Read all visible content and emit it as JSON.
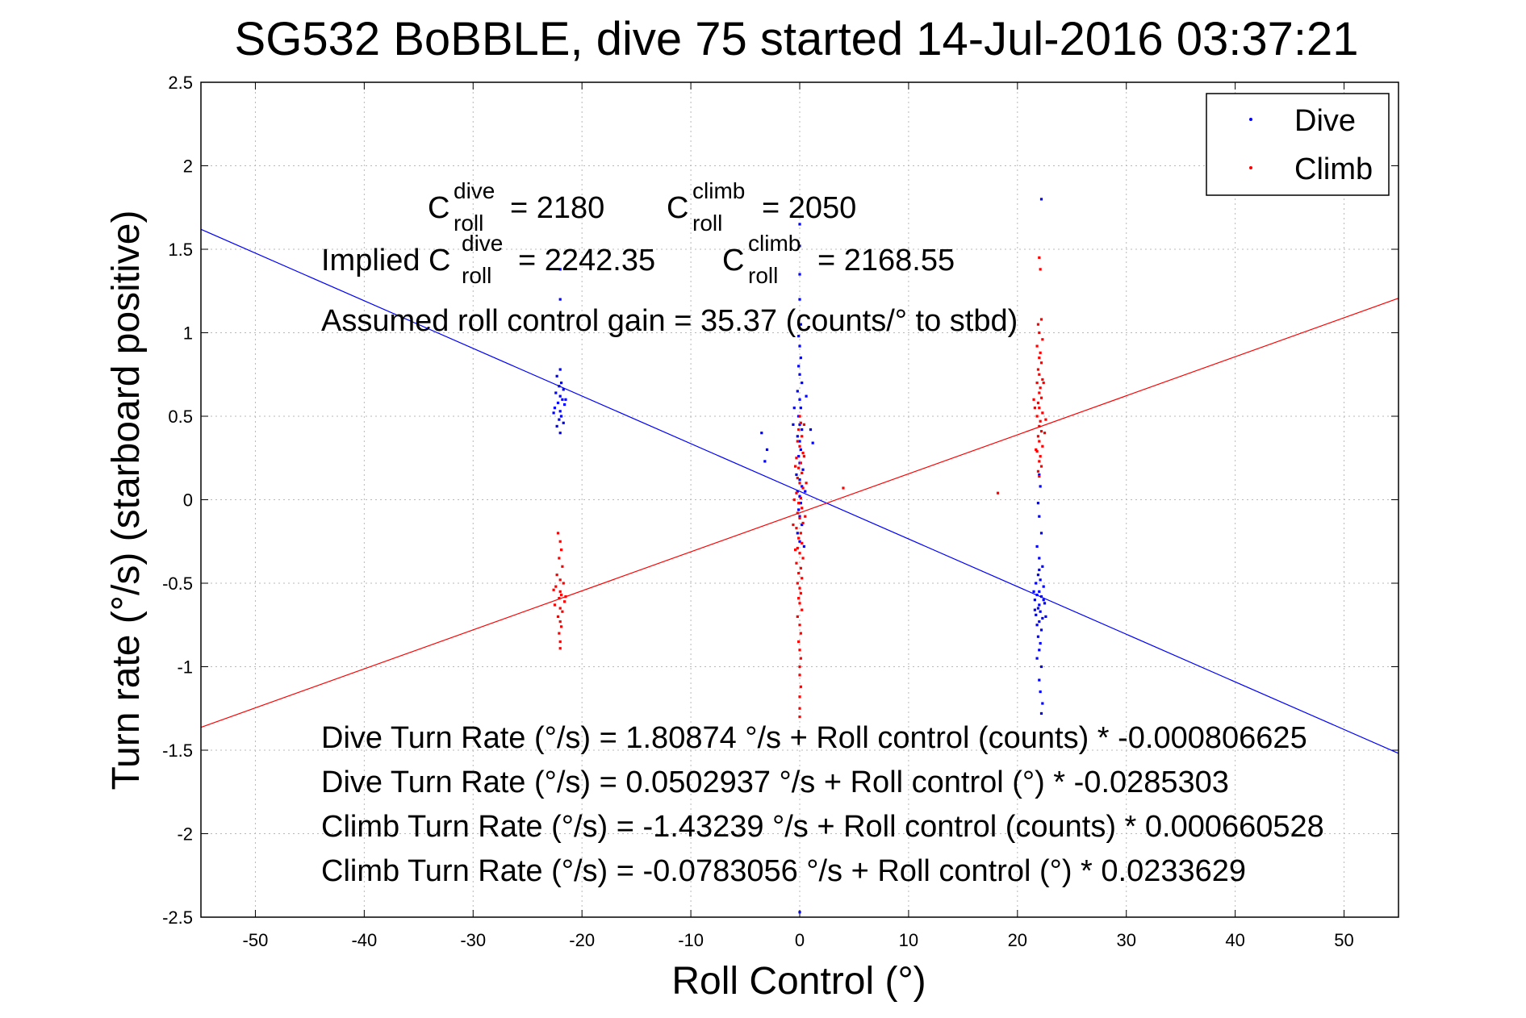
{
  "colors": {
    "dive": "#0000ff",
    "climb": "#ff0000",
    "axis": "#000000",
    "background": "#ffffff"
  },
  "annotations": {
    "c_roll_dive_label": "C",
    "c_roll_dive_sup": "dive",
    "c_roll_dive_sub": "roll",
    "c_roll_dive_value": "= 2180",
    "c_roll_climb_label": "C",
    "c_roll_climb_sup": "climb",
    "c_roll_climb_sub": "roll",
    "c_roll_climb_value": "= 2050",
    "implied_prefix": "Implied C",
    "implied_dive_sup": "dive",
    "implied_dive_sub": "roll",
    "implied_dive_value": "= 2242.35",
    "implied_climb_label": "C",
    "implied_climb_sup": "climb",
    "implied_climb_sub": "roll",
    "implied_climb_value": "= 2168.55",
    "gain": "Assumed roll control gain = 35.37 (counts/° to stbd)",
    "eq1": "Dive Turn Rate (°/s) = 1.80874 °/s + Roll control (counts) * -0.000806625",
    "eq2": "Dive Turn Rate (°/s) = 0.0502937 °/s + Roll control (°) * -0.0285303",
    "eq3": "Climb Turn Rate (°/s) = -1.43239 °/s + Roll control (counts) * 0.000660528",
    "eq4": "Climb Turn Rate (°/s) = -0.0783056 °/s + Roll control (°) * 0.0233629"
  },
  "chart_data": {
    "type": "scatter",
    "title": "SG532 BoBBLE, dive 75 started 14-Jul-2016 03:37:21",
    "xlabel": "Roll Control (°)",
    "ylabel": "Turn rate (°/s) (starboard positive)",
    "xlim": [
      -55,
      55
    ],
    "ylim": [
      -2.5,
      2.5
    ],
    "xticks": [
      -50,
      -40,
      -30,
      -20,
      -10,
      0,
      10,
      20,
      30,
      40,
      50
    ],
    "yticks": [
      -2.5,
      -2,
      -1.5,
      -1,
      -0.5,
      0,
      0.5,
      1,
      1.5,
      2,
      2.5
    ],
    "xtick_labels": [
      "-50",
      "-40",
      "-30",
      "-20",
      "-10",
      "0",
      "10",
      "20",
      "30",
      "40",
      "50"
    ],
    "ytick_labels": [
      "-2.5",
      "-2",
      "-1.5",
      "-1",
      "-0.5",
      "0",
      "0.5",
      "1",
      "1.5",
      "2",
      "2.5"
    ],
    "grid": true,
    "legend_position": "top-right",
    "series": [
      {
        "name": "Dive",
        "color": "#0000ff",
        "marker": "dot",
        "points": [
          [
            -22.0,
            0.78
          ],
          [
            -22.3,
            0.74
          ],
          [
            -21.9,
            0.7
          ],
          [
            -22.1,
            0.68
          ],
          [
            -21.7,
            0.66
          ],
          [
            -22.4,
            0.64
          ],
          [
            -22.0,
            0.62
          ],
          [
            -21.8,
            0.6
          ],
          [
            -22.2,
            0.58
          ],
          [
            -21.6,
            0.57
          ],
          [
            -22.5,
            0.55
          ],
          [
            -22.0,
            0.53
          ],
          [
            -21.9,
            0.5
          ],
          [
            -22.1,
            0.48
          ],
          [
            -21.7,
            0.46
          ],
          [
            -22.3,
            0.44
          ],
          [
            -22.0,
            1.2
          ],
          [
            -22.0,
            1.38
          ],
          [
            -22.0,
            0.4
          ],
          [
            -21.5,
            0.6
          ],
          [
            -22.6,
            0.52
          ],
          [
            -3.5,
            0.4
          ],
          [
            -3.2,
            0.23
          ],
          [
            -3.0,
            0.3
          ],
          [
            0.0,
            1.52
          ],
          [
            0.0,
            1.35
          ],
          [
            0.0,
            1.2
          ],
          [
            0.1,
            1.05
          ],
          [
            -0.1,
            0.98
          ],
          [
            0.0,
            0.92
          ],
          [
            0.1,
            0.85
          ],
          [
            -0.1,
            0.8
          ],
          [
            0.0,
            0.75
          ],
          [
            0.2,
            0.7
          ],
          [
            -0.2,
            0.65
          ],
          [
            0.0,
            0.6
          ],
          [
            0.1,
            0.55
          ],
          [
            -0.1,
            0.5
          ],
          [
            0.0,
            0.45
          ],
          [
            0.2,
            0.42
          ],
          [
            -0.2,
            0.38
          ],
          [
            0.0,
            0.35
          ],
          [
            0.1,
            0.3
          ],
          [
            -0.1,
            0.26
          ],
          [
            0.0,
            0.22
          ],
          [
            0.3,
            0.18
          ],
          [
            -0.3,
            0.15
          ],
          [
            0.0,
            0.12
          ],
          [
            0.2,
            0.08
          ],
          [
            -0.2,
            0.05
          ],
          [
            0.0,
            0.02
          ],
          [
            0.1,
            -0.02
          ],
          [
            -0.1,
            -0.06
          ],
          [
            0.0,
            -0.1
          ],
          [
            0.2,
            -0.15
          ],
          [
            -0.2,
            -0.2
          ],
          [
            0.0,
            -0.25
          ],
          [
            0.4,
            -0.28
          ],
          [
            1.0,
            0.42
          ],
          [
            1.2,
            0.34
          ],
          [
            0.5,
            0.05
          ],
          [
            -0.6,
            0.45
          ],
          [
            -0.5,
            0.55
          ],
          [
            0.6,
            0.62
          ],
          [
            0.0,
            1.65
          ],
          [
            0.0,
            -2.47
          ],
          [
            22.2,
            1.8
          ],
          [
            22.0,
            0.15
          ],
          [
            22.1,
            0.08
          ],
          [
            21.9,
            -0.02
          ],
          [
            22.0,
            -0.1
          ],
          [
            22.2,
            -0.2
          ],
          [
            21.8,
            -0.28
          ],
          [
            22.0,
            -0.35
          ],
          [
            22.3,
            -0.4
          ],
          [
            21.9,
            -0.45
          ],
          [
            22.1,
            -0.48
          ],
          [
            21.7,
            -0.5
          ],
          [
            22.4,
            -0.52
          ],
          [
            22.0,
            -0.55
          ],
          [
            21.8,
            -0.57
          ],
          [
            22.2,
            -0.58
          ],
          [
            21.6,
            -0.6
          ],
          [
            22.5,
            -0.62
          ],
          [
            22.0,
            -0.63
          ],
          [
            21.9,
            -0.65
          ],
          [
            22.1,
            -0.67
          ],
          [
            21.7,
            -0.69
          ],
          [
            22.3,
            -0.71
          ],
          [
            22.0,
            -0.73
          ],
          [
            21.8,
            -0.75
          ],
          [
            22.2,
            -0.78
          ],
          [
            21.9,
            -0.82
          ],
          [
            22.1,
            -0.86
          ],
          [
            22.0,
            -0.9
          ],
          [
            21.8,
            -0.95
          ],
          [
            22.2,
            -1.0
          ],
          [
            22.0,
            -1.08
          ],
          [
            22.1,
            -1.15
          ],
          [
            22.3,
            -1.22
          ],
          [
            22.2,
            -1.28
          ],
          [
            22.0,
            -0.42
          ],
          [
            21.6,
            -0.66
          ],
          [
            22.6,
            -0.7
          ],
          [
            22.4,
            -0.6
          ],
          [
            21.5,
            -0.55
          ]
        ]
      },
      {
        "name": "Climb",
        "color": "#ff0000",
        "marker": "dot",
        "points": [
          [
            -22.2,
            -0.2
          ],
          [
            -22.0,
            -0.25
          ],
          [
            -21.9,
            -0.3
          ],
          [
            -22.1,
            -0.35
          ],
          [
            -21.8,
            -0.4
          ],
          [
            -22.3,
            -0.45
          ],
          [
            -22.0,
            -0.48
          ],
          [
            -21.7,
            -0.5
          ],
          [
            -22.4,
            -0.52
          ],
          [
            -22.0,
            -0.55
          ],
          [
            -21.9,
            -0.57
          ],
          [
            -22.1,
            -0.59
          ],
          [
            -21.6,
            -0.61
          ],
          [
            -22.5,
            -0.63
          ],
          [
            -22.0,
            -0.65
          ],
          [
            -21.8,
            -0.67
          ],
          [
            -22.2,
            -0.7
          ],
          [
            -22.0,
            -0.73
          ],
          [
            -21.9,
            -0.76
          ],
          [
            -22.1,
            -0.8
          ],
          [
            -22.0,
            -0.85
          ],
          [
            -22.0,
            -0.89
          ],
          [
            -21.5,
            -0.58
          ],
          [
            -22.6,
            -0.54
          ],
          [
            0.0,
            0.5
          ],
          [
            0.1,
            0.46
          ],
          [
            -0.1,
            0.42
          ],
          [
            0.2,
            0.38
          ],
          [
            -0.2,
            0.35
          ],
          [
            0.0,
            0.32
          ],
          [
            0.3,
            0.28
          ],
          [
            -0.3,
            0.25
          ],
          [
            0.1,
            0.22
          ],
          [
            -0.1,
            0.19
          ],
          [
            0.2,
            0.16
          ],
          [
            -0.2,
            0.13
          ],
          [
            0.0,
            0.1
          ],
          [
            0.3,
            0.07
          ],
          [
            -0.3,
            0.04
          ],
          [
            0.1,
            0.01
          ],
          [
            -0.1,
            -0.02
          ],
          [
            0.2,
            -0.05
          ],
          [
            -0.2,
            -0.08
          ],
          [
            0.0,
            -0.11
          ],
          [
            0.3,
            -0.14
          ],
          [
            -0.3,
            -0.17
          ],
          [
            0.1,
            -0.2
          ],
          [
            -0.1,
            -0.23
          ],
          [
            0.2,
            -0.26
          ],
          [
            -0.2,
            -0.29
          ],
          [
            0.0,
            -0.32
          ],
          [
            0.3,
            -0.35
          ],
          [
            -0.3,
            -0.38
          ],
          [
            0.1,
            -0.41
          ],
          [
            -0.1,
            -0.44
          ],
          [
            0.2,
            -0.47
          ],
          [
            -0.2,
            -0.5
          ],
          [
            0.0,
            -0.53
          ],
          [
            0.1,
            -0.56
          ],
          [
            -0.1,
            -0.59
          ],
          [
            0.0,
            -0.62
          ],
          [
            0.2,
            -0.66
          ],
          [
            -0.2,
            -0.7
          ],
          [
            0.0,
            -0.75
          ],
          [
            0.1,
            -0.8
          ],
          [
            -0.1,
            -0.85
          ],
          [
            0.0,
            -0.9
          ],
          [
            0.1,
            -0.95
          ],
          [
            0.0,
            -1.0
          ],
          [
            0.0,
            -1.05
          ],
          [
            0.1,
            -1.12
          ],
          [
            0.0,
            -1.18
          ],
          [
            0.0,
            -1.25
          ],
          [
            0.0,
            -1.3
          ],
          [
            0.4,
            0.26
          ],
          [
            -0.4,
            0.2
          ],
          [
            0.5,
            -0.1
          ],
          [
            -0.5,
            0.0
          ],
          [
            0.4,
            0.45
          ],
          [
            -0.4,
            -0.3
          ],
          [
            0.6,
            0.1
          ],
          [
            -0.6,
            -0.15
          ],
          [
            4.0,
            0.07
          ],
          [
            18.2,
            0.04
          ],
          [
            22.0,
            1.45
          ],
          [
            22.1,
            1.38
          ],
          [
            22.2,
            1.08
          ],
          [
            21.9,
            1.05
          ],
          [
            22.0,
            1.0
          ],
          [
            22.3,
            0.96
          ],
          [
            21.8,
            0.92
          ],
          [
            22.1,
            0.88
          ],
          [
            22.0,
            0.85
          ],
          [
            22.2,
            0.82
          ],
          [
            21.9,
            0.78
          ],
          [
            22.0,
            0.75
          ],
          [
            22.3,
            0.72
          ],
          [
            21.8,
            0.7
          ],
          [
            22.1,
            0.67
          ],
          [
            22.0,
            0.64
          ],
          [
            22.2,
            0.61
          ],
          [
            21.9,
            0.58
          ],
          [
            22.0,
            0.55
          ],
          [
            22.3,
            0.52
          ],
          [
            21.8,
            0.5
          ],
          [
            22.1,
            0.47
          ],
          [
            22.0,
            0.44
          ],
          [
            22.2,
            0.41
          ],
          [
            21.9,
            0.38
          ],
          [
            22.0,
            0.35
          ],
          [
            22.3,
            0.32
          ],
          [
            21.8,
            0.29
          ],
          [
            22.1,
            0.26
          ],
          [
            22.0,
            0.23
          ],
          [
            22.2,
            0.2
          ],
          [
            21.9,
            0.17
          ],
          [
            22.0,
            0.14
          ],
          [
            21.6,
            0.55
          ],
          [
            22.6,
            0.48
          ],
          [
            21.5,
            0.6
          ],
          [
            22.5,
            0.4
          ],
          [
            22.4,
            0.7
          ],
          [
            21.7,
            0.3
          ]
        ]
      }
    ],
    "fit_lines": [
      {
        "name": "Dive fit",
        "color": "#0000ff",
        "intercept": 0.0502937,
        "slope": -0.0285303
      },
      {
        "name": "Climb fit",
        "color": "#ff0000",
        "intercept": -0.0783056,
        "slope": 0.0233629
      }
    ]
  }
}
